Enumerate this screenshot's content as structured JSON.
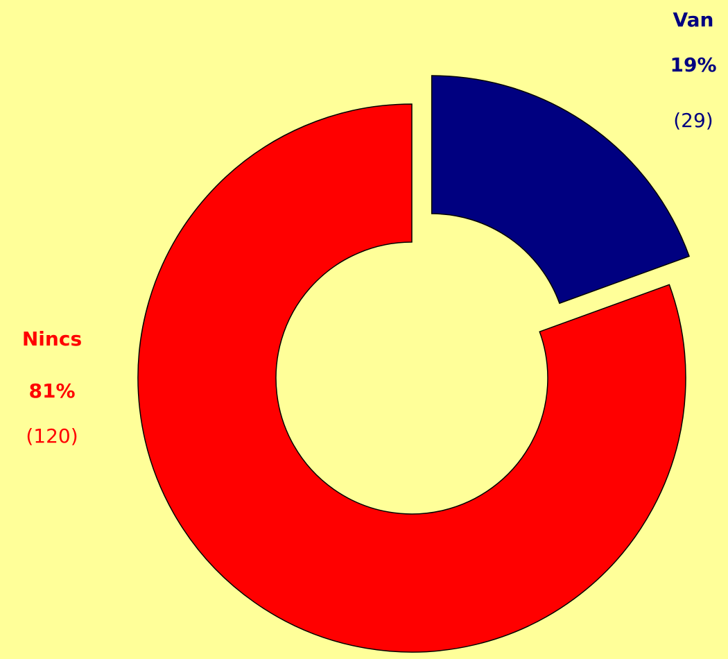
{
  "chart_data": {
    "type": "donut",
    "categories": [
      "Van",
      "Nincs"
    ],
    "values": [
      29,
      120
    ],
    "value_labels": [
      "(29)",
      "(120)"
    ],
    "percent_labels": [
      "19%",
      "81%"
    ],
    "colors": [
      "#000080",
      "#ff0000"
    ]
  }
}
